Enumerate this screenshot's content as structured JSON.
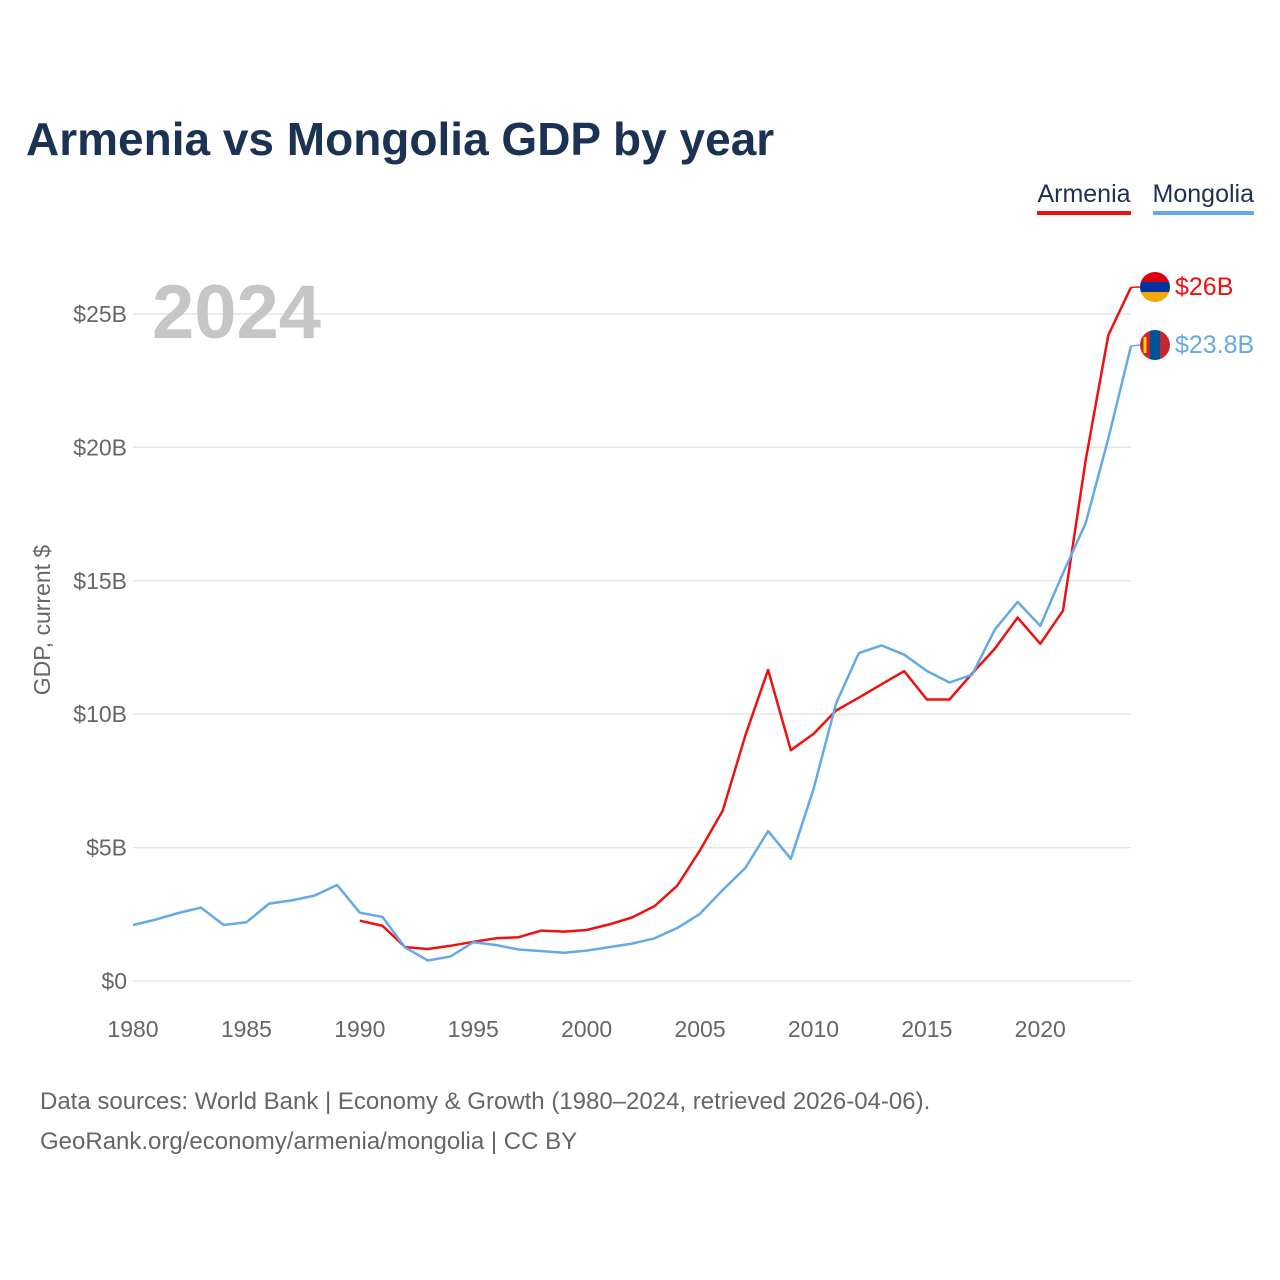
{
  "title": "Armenia vs Mongolia GDP by year",
  "legend": [
    {
      "label": "Armenia",
      "color": "#ee1111"
    },
    {
      "label": "Mongolia",
      "color": "#65a9e6"
    }
  ],
  "footer": {
    "line1": "Data sources: World Bank | Economy & Growth (1980–2024, retrieved 2026-04-06).",
    "line2": "GeoRank.org/economy/armenia/mongolia | CC BY"
  },
  "chart_data": {
    "type": "line",
    "title": "Armenia vs Mongolia GDP by year",
    "xlabel": "",
    "ylabel": "GDP, current $",
    "xlim": [
      1980,
      2024
    ],
    "ylim": [
      0,
      26
    ],
    "grid": true,
    "legend_position": "top-right",
    "year_label": "2024",
    "x_ticks": [
      1980,
      1985,
      1990,
      1995,
      2000,
      2005,
      2010,
      2015,
      2020
    ],
    "x_tick_labels": [
      "1980",
      "1985",
      "1990",
      "1995",
      "2000",
      "2005",
      "2010",
      "2015",
      "2020"
    ],
    "y_ticks": [
      0,
      5,
      10,
      15,
      20,
      25
    ],
    "y_tick_labels": [
      "$0",
      "$5B",
      "$10B",
      "$15B",
      "$20B",
      "$25B"
    ],
    "series": [
      {
        "name": "Armenia",
        "color": "#ee1111",
        "end_label": "$26B",
        "flag": "armenia-flag",
        "x": [
          1990,
          1991,
          1992,
          1993,
          1994,
          1995,
          1996,
          1997,
          1998,
          1999,
          2000,
          2001,
          2002,
          2003,
          2004,
          2005,
          2006,
          2007,
          2008,
          2009,
          2010,
          2011,
          2012,
          2013,
          2014,
          2015,
          2016,
          2017,
          2018,
          2019,
          2020,
          2021,
          2022,
          2023,
          2024
        ],
        "values": [
          2.26,
          2.07,
          1.27,
          1.2,
          1.32,
          1.47,
          1.6,
          1.64,
          1.89,
          1.85,
          1.91,
          2.12,
          2.38,
          2.81,
          3.58,
          4.9,
          6.38,
          9.21,
          11.66,
          8.65,
          9.26,
          10.14,
          10.62,
          11.12,
          11.61,
          10.55,
          10.55,
          11.53,
          12.46,
          13.62,
          12.64,
          13.88,
          19.5,
          24.21,
          26.0
        ]
      },
      {
        "name": "Mongolia",
        "color": "#65a9e6",
        "end_label": "$23.8B",
        "flag": "mongolia-flag",
        "x": [
          1980,
          1981,
          1982,
          1983,
          1984,
          1985,
          1986,
          1987,
          1988,
          1989,
          1990,
          1991,
          1992,
          1993,
          1994,
          1995,
          1996,
          1997,
          1998,
          1999,
          2000,
          2001,
          2002,
          2003,
          2004,
          2005,
          2006,
          2007,
          2008,
          2009,
          2010,
          2011,
          2012,
          2013,
          2014,
          2015,
          2016,
          2017,
          2018,
          2019,
          2020,
          2021,
          2022,
          2023,
          2024
        ],
        "values": [
          2.1,
          2.3,
          2.55,
          2.75,
          2.1,
          2.2,
          2.9,
          3.02,
          3.2,
          3.6,
          2.56,
          2.4,
          1.25,
          0.77,
          0.92,
          1.45,
          1.35,
          1.18,
          1.12,
          1.06,
          1.14,
          1.27,
          1.4,
          1.6,
          1.99,
          2.52,
          3.41,
          4.24,
          5.62,
          4.58,
          7.19,
          10.41,
          12.29,
          12.58,
          12.23,
          11.62,
          11.19,
          11.48,
          13.18,
          14.21,
          13.31,
          15.29,
          17.15,
          20.33,
          23.8
        ]
      }
    ]
  }
}
